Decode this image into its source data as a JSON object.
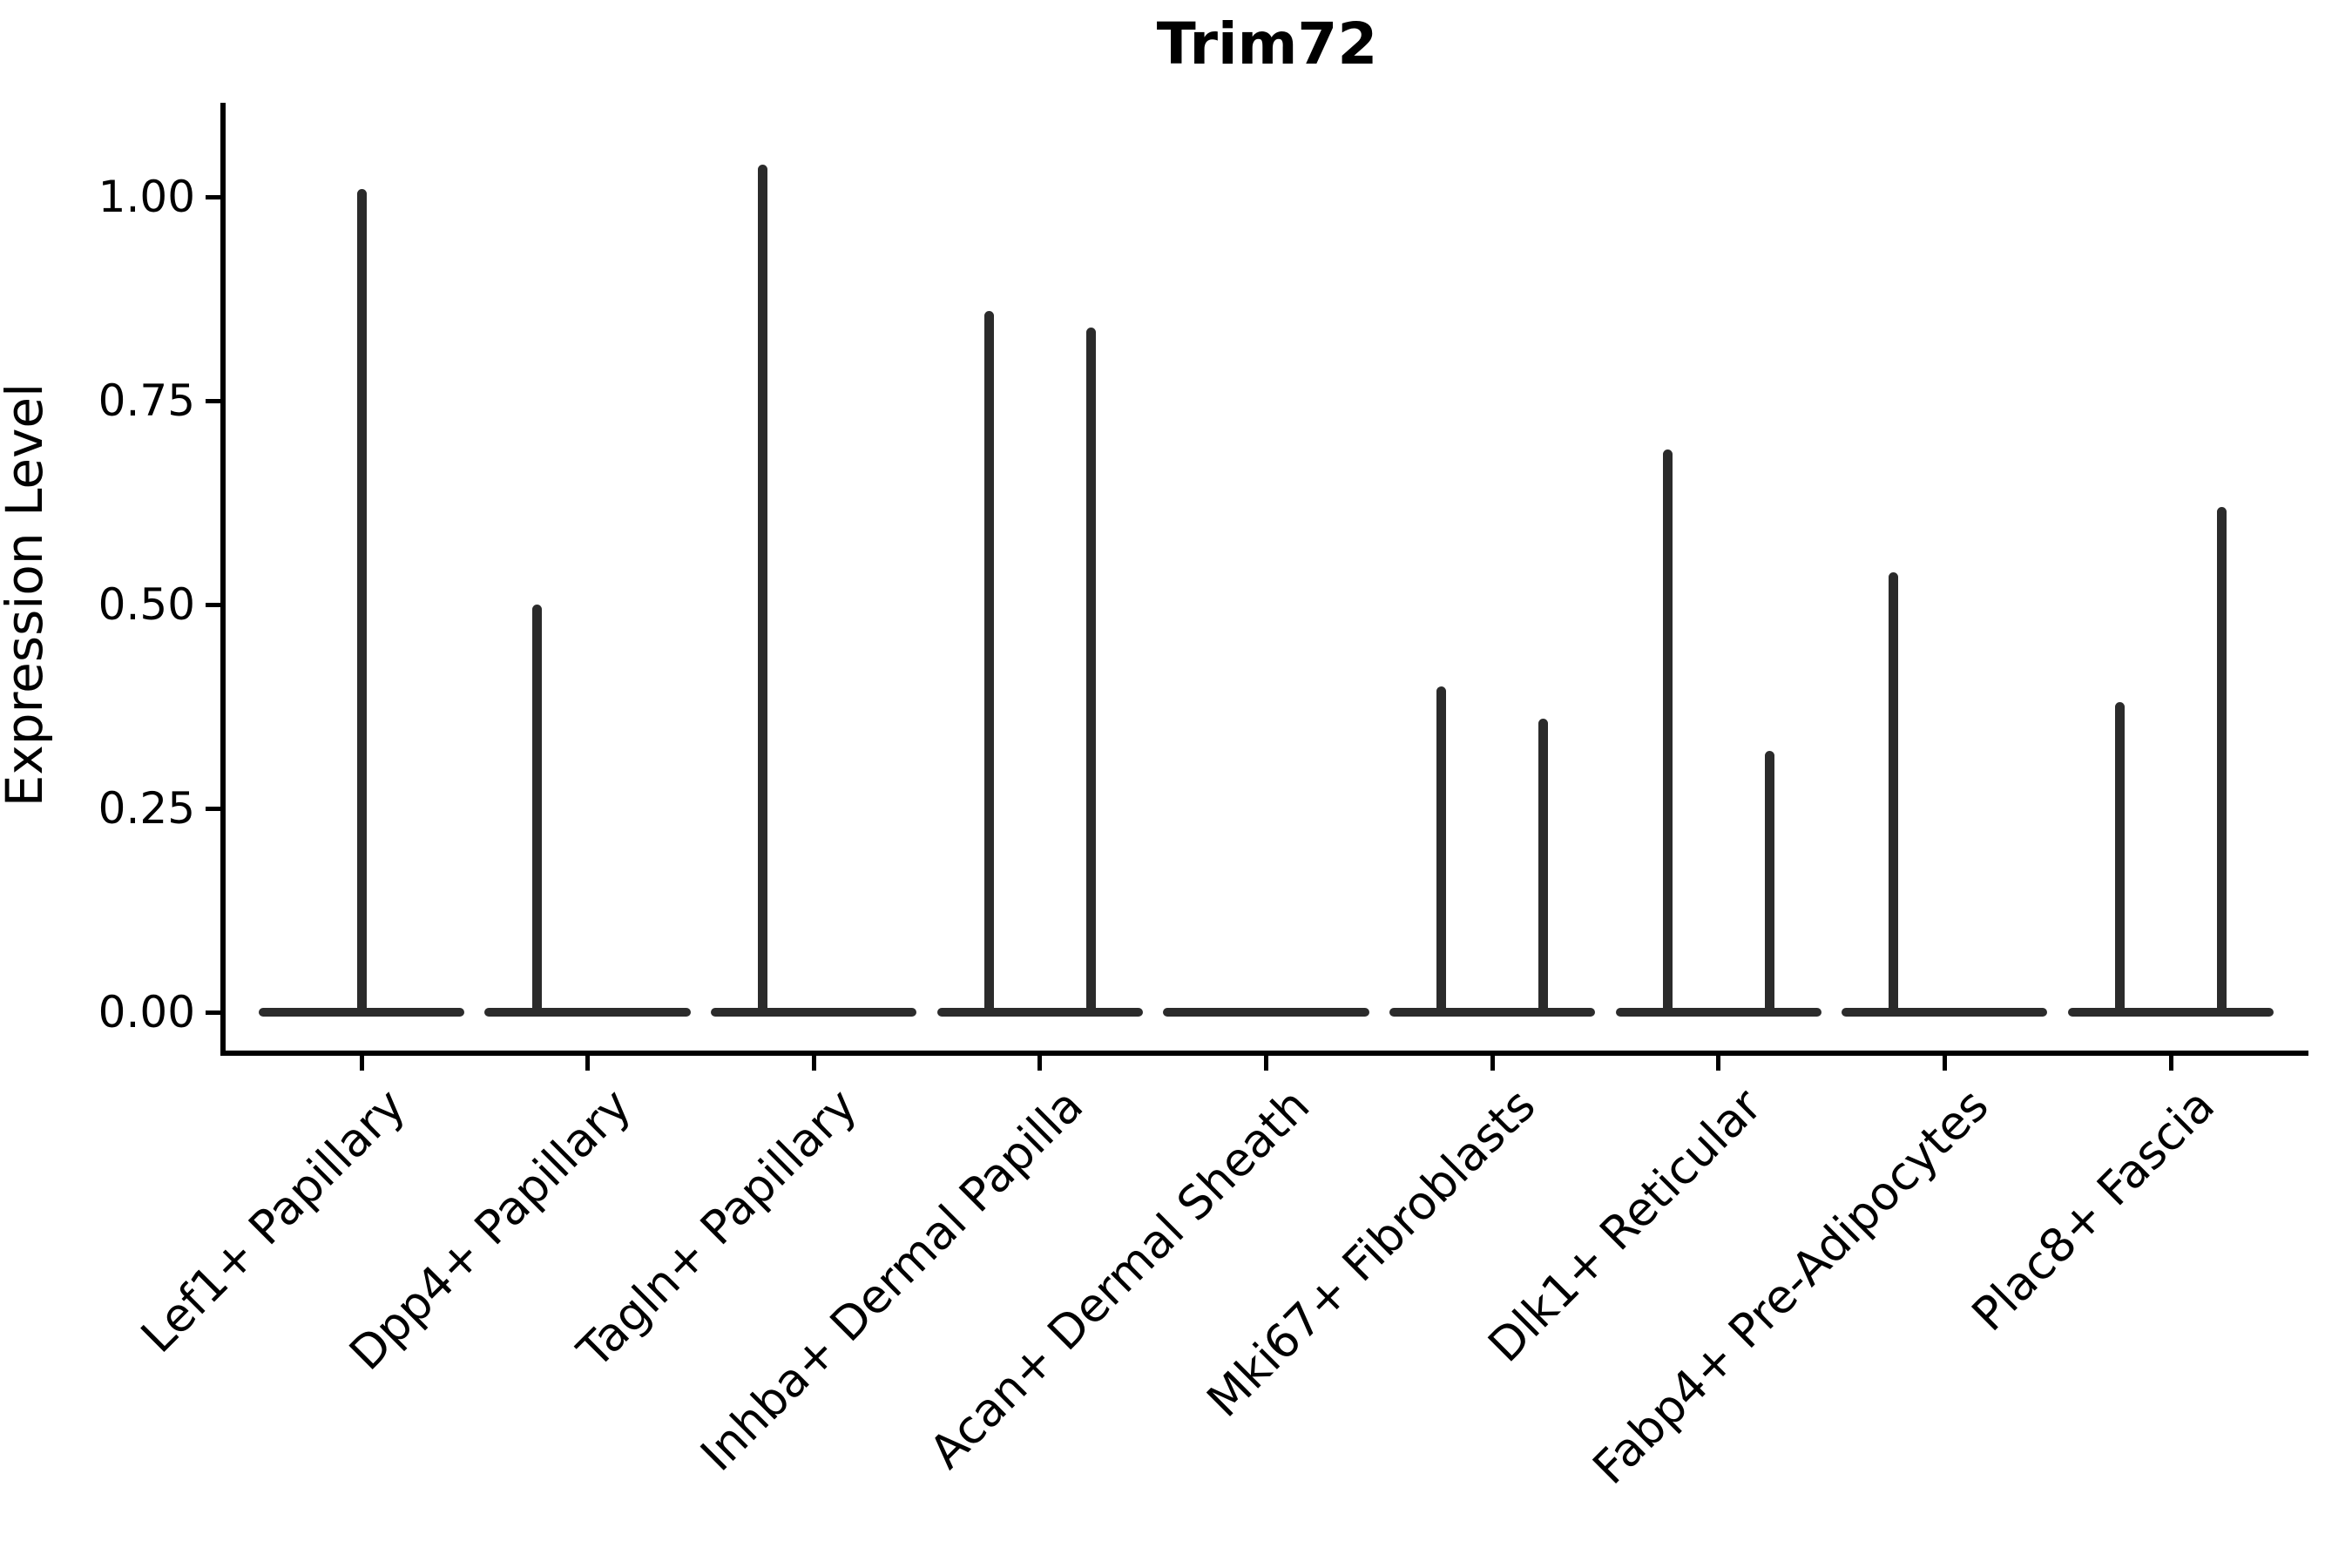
{
  "chart_data": {
    "type": "violin",
    "title": "Trim72",
    "xlabel": "",
    "ylabel": "Expression Level",
    "ytick_labels": [
      "0.00",
      "0.25",
      "0.50",
      "0.75",
      "1.00"
    ],
    "ytick_values": [
      0.0,
      0.25,
      0.5,
      0.75,
      1.0
    ],
    "ylim": [
      -0.05,
      1.115
    ],
    "grid": false,
    "legend": "none",
    "categories": [
      "Lef1+ Papillary",
      "Dpp4+ Papillary",
      "Tagln+ Papillary",
      "Inhba+ Dermal Papilla",
      "Acan+ Dermal Sheath",
      "Mki67+ Fibroblasts",
      "Dlk1+ Reticular",
      "Fabp4+ Pre-Adipocytes",
      "Plac8+ Fascia"
    ],
    "violins": [
      {
        "category": "Lef1+ Papillary",
        "baseline_value": 0.0,
        "spikes": [
          {
            "offset": 0.0,
            "max": 1.01
          }
        ]
      },
      {
        "category": "Dpp4+ Papillary",
        "baseline_value": 0.0,
        "spikes": [
          {
            "offset": -0.225,
            "max": 0.5
          }
        ]
      },
      {
        "category": "Tagln+ Papillary",
        "baseline_value": 0.0,
        "spikes": [
          {
            "offset": -0.225,
            "max": 1.04
          }
        ]
      },
      {
        "category": "Inhba+ Dermal Papilla",
        "baseline_value": 0.0,
        "spikes": [
          {
            "offset": -0.225,
            "max": 0.86
          },
          {
            "offset": 0.225,
            "max": 0.84
          }
        ]
      },
      {
        "category": "Acan+ Dermal Sheath",
        "baseline_value": 0.0,
        "spikes": []
      },
      {
        "category": "Mki67+ Fibroblasts",
        "baseline_value": 0.0,
        "spikes": [
          {
            "offset": -0.225,
            "max": 0.4
          },
          {
            "offset": 0.225,
            "max": 0.36
          }
        ]
      },
      {
        "category": "Dlk1+ Reticular",
        "baseline_value": 0.0,
        "spikes": [
          {
            "offset": -0.225,
            "max": 0.69
          },
          {
            "offset": 0.225,
            "max": 0.32
          }
        ]
      },
      {
        "category": "Fabp4+ Pre-Adipocytes",
        "baseline_value": 0.0,
        "spikes": [
          {
            "offset": -0.225,
            "max": 0.54
          }
        ]
      },
      {
        "category": "Plac8+ Fascia",
        "baseline_value": 0.0,
        "spikes": [
          {
            "offset": -0.225,
            "max": 0.38
          },
          {
            "offset": 0.225,
            "max": 0.62
          }
        ]
      }
    ],
    "baseline_halfwidth": 0.455,
    "colors": {
      "violin_line": "#2b2b2b",
      "axis": "#000000",
      "background": "#ffffff"
    }
  }
}
